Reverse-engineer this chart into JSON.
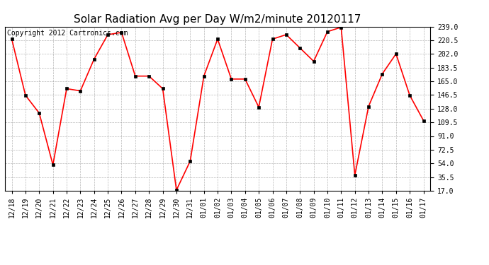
{
  "title": "Solar Radiation Avg per Day W/m2/minute 20120117",
  "copyright": "Copyright 2012 Cartronics.com",
  "dates": [
    "12/18",
    "12/19",
    "12/20",
    "12/21",
    "12/22",
    "12/23",
    "12/24",
    "12/25",
    "12/26",
    "12/27",
    "12/28",
    "12/29",
    "12/30",
    "12/31",
    "01/01",
    "01/02",
    "01/03",
    "01/04",
    "01/05",
    "01/06",
    "01/07",
    "01/08",
    "01/09",
    "01/10",
    "01/11",
    "01/12",
    "01/13",
    "01/14",
    "01/15",
    "01/16",
    "01/17"
  ],
  "values": [
    222,
    146,
    122,
    52,
    155,
    152,
    195,
    228,
    231,
    172,
    172,
    155,
    18,
    57,
    172,
    222,
    168,
    168,
    130,
    222,
    228,
    210,
    192,
    232,
    238,
    38,
    131,
    175,
    202,
    146,
    112
  ],
  "line_color": "#ff0000",
  "marker_color": "#000000",
  "bg_color": "#ffffff",
  "grid_color": "#999999",
  "yticks": [
    17.0,
    35.5,
    54.0,
    72.5,
    91.0,
    109.5,
    128.0,
    146.5,
    165.0,
    183.5,
    202.0,
    220.5,
    239.0
  ],
  "ylim_min": 17.0,
  "ylim_max": 239.0,
  "title_fontsize": 11,
  "copyright_fontsize": 7,
  "tick_fontsize": 7
}
